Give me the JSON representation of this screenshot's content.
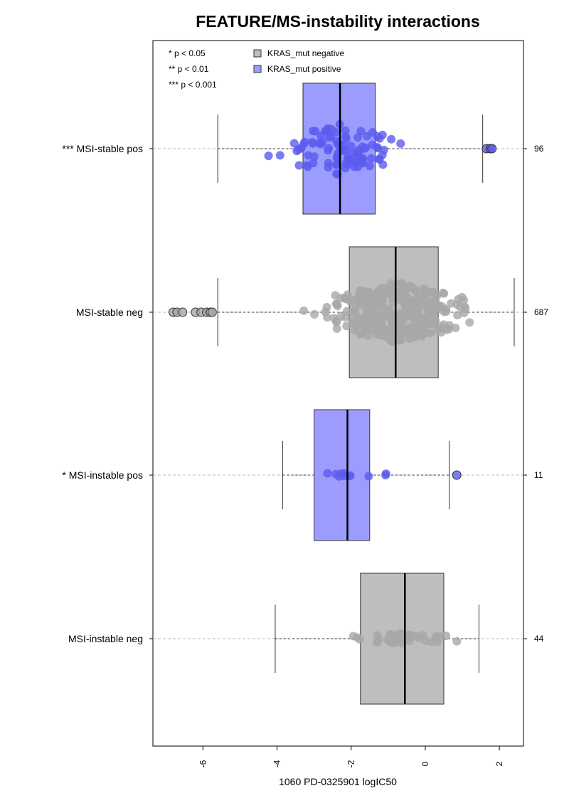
{
  "chart_data": {
    "type": "box",
    "title": "FEATURE/MS-instability interactions",
    "xlabel": "1060 PD-0325901 logIC50",
    "xlim": [
      -7.35,
      2.65
    ],
    "x_ticks": [
      -6,
      -4,
      -2,
      0,
      2
    ],
    "x_tick_labels": [
      "-6",
      "-4",
      "-2",
      "0",
      "2"
    ],
    "grid": "dashed horizontal line per group",
    "significance_legend": [
      "* p < 0.05",
      "** p < 0.01",
      "*** p < 0.001"
    ],
    "legend_position": "top-left",
    "legend": [
      {
        "label": "KRAS_mut negative",
        "color": "#bebebe"
      },
      {
        "label": "KRAS_mut positive",
        "color": "#9c9cff"
      }
    ],
    "colors": {
      "negative_box": "#bebebe",
      "positive_box": "#9c9cff",
      "negative_point": "#a8a8a8",
      "positive_point": "#5b5bf0",
      "grid": "#bbbbbb"
    },
    "groups": [
      {
        "label": "*** MSI-stable pos",
        "n": "96",
        "kras": "positive",
        "whisker_low": -5.6,
        "q1": -3.3,
        "median": -2.3,
        "q3": -1.35,
        "whisker_high": 1.55,
        "outliers": [
          1.65,
          1.75,
          1.8
        ],
        "spread_min": -5.6,
        "spread_max": 1.55,
        "center": -2.3,
        "width": 1.95,
        "band": 0.42,
        "jitter_n": 96
      },
      {
        "label": "MSI-stable neg",
        "n": "687",
        "kras": "negative",
        "whisker_low": -5.6,
        "q1": -2.05,
        "median": -0.8,
        "q3": 0.35,
        "whisker_high": 2.4,
        "outliers": [
          -6.8,
          -6.7,
          -6.55,
          -6.2,
          -6.05,
          -5.9,
          -5.8,
          -5.75
        ],
        "spread_min": -5.6,
        "spread_max": 2.4,
        "center": -0.8,
        "width": 2.2,
        "band": 0.48,
        "jitter_n": 320
      },
      {
        "label": "* MSI-instable pos",
        "n": "11",
        "kras": "positive",
        "whisker_low": -3.85,
        "q1": -3.0,
        "median": -2.1,
        "q3": -1.5,
        "whisker_high": 0.65,
        "outliers": [
          0.85
        ],
        "spread_min": -3.85,
        "spread_max": 0.65,
        "center": -2.1,
        "width": 1.5,
        "band": 0.04,
        "jitter_n": 11
      },
      {
        "label": "MSI-instable neg",
        "n": "44",
        "kras": "negative",
        "whisker_low": -4.05,
        "q1": -1.75,
        "median": -0.55,
        "q3": 0.5,
        "whisker_high": 1.45,
        "outliers": [],
        "spread_min": -4.05,
        "spread_max": 1.45,
        "center": -0.55,
        "width": 1.7,
        "band": 0.09,
        "jitter_n": 44
      }
    ]
  }
}
